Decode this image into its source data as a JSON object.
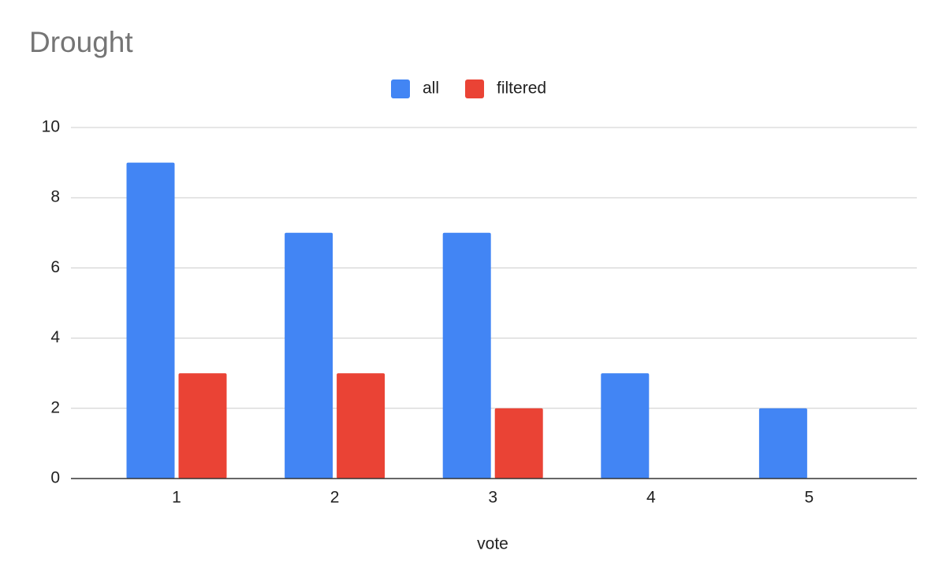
{
  "chart_data": {
    "type": "bar",
    "title": "Drought",
    "x_label": "vote",
    "categories": [
      "1",
      "2",
      "3",
      "4",
      "5"
    ],
    "series": [
      {
        "name": "all",
        "color": "#4285f4",
        "values": [
          9,
          7,
          7,
          3,
          2
        ]
      },
      {
        "name": "filtered",
        "color": "#ea4335",
        "values": [
          3,
          3,
          2,
          null,
          null
        ]
      }
    ],
    "ylim": [
      0,
      10
    ],
    "yticks": [
      0,
      2,
      4,
      6,
      8,
      10
    ],
    "grid": true,
    "legend": "top"
  }
}
